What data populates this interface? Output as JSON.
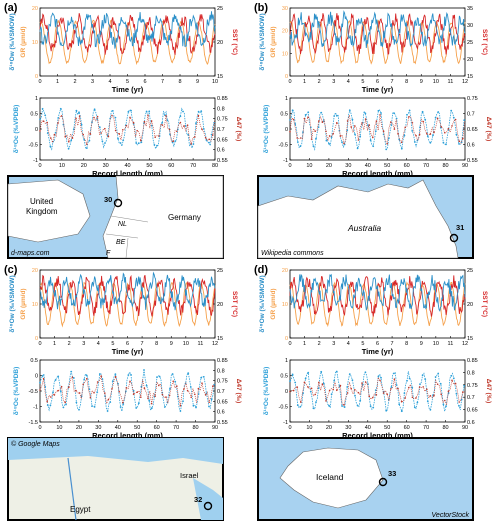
{
  "colors": {
    "gr": "#f5a04a",
    "sst": "#d62728",
    "d18o_water": "#2b8fc8",
    "d18o_calcite": "#2b9fd8",
    "d47": "#c0392b",
    "map_water": "#a8d2f0",
    "map_land": "#ffffff",
    "map_border": "#222222"
  },
  "panels": [
    {
      "label": "(a)",
      "top": {
        "xlabel": "Time (yr)",
        "left_label": "GR (µm/d)",
        "left_ticks": [
          "0",
          "10",
          "20"
        ],
        "right_label": "SST (°C)",
        "right_ticks": [
          "15",
          "20",
          "25"
        ],
        "x_ticks": [
          "0",
          "1",
          "2",
          "3",
          "4",
          "5",
          "6",
          "7",
          "8",
          "9",
          "10"
        ],
        "xlim": [
          0,
          10
        ]
      },
      "bottom": {
        "xlabel": "Record length (mm)",
        "left_ticks": [
          "-1",
          "-0.5",
          "0",
          "0.5",
          "1"
        ],
        "right_ticks": [
          "0.55",
          "0.6",
          "0.65",
          "0.7",
          "0.75",
          "0.8",
          "0.85"
        ],
        "x_ticks": [
          "0",
          "10",
          "20",
          "30",
          "40",
          "50",
          "60",
          "70",
          "80"
        ],
        "xlim": [
          0,
          80
        ]
      },
      "map": {
        "credit": "d-maps.com",
        "site": "30",
        "labels": [
          "United",
          "Kingdom",
          "NL",
          "BE",
          "F",
          "Germany"
        ]
      }
    },
    {
      "label": "(b)",
      "top": {
        "xlabel": "Time (yr)",
        "left_label": "GR (µm/d)",
        "left_ticks": [
          "0",
          "10",
          "20",
          "30"
        ],
        "right_label": "SST (°C)",
        "right_ticks": [
          "15",
          "20",
          "25",
          "30",
          "35"
        ],
        "x_ticks": [
          "0",
          "1",
          "2",
          "3",
          "4",
          "5",
          "6",
          "7",
          "8",
          "9",
          "10",
          "11",
          "12"
        ],
        "xlim": [
          0,
          12
        ]
      },
      "bottom": {
        "xlabel": "Record length (mm)",
        "left_ticks": [
          "-1",
          "-0.5",
          "0",
          "0.5",
          "1"
        ],
        "right_ticks": [
          "0.55",
          "0.6",
          "0.65",
          "0.7",
          "0.75"
        ],
        "x_ticks": [
          "0",
          "10",
          "20",
          "30",
          "40",
          "50",
          "60",
          "70",
          "80",
          "90"
        ],
        "xlim": [
          0,
          90
        ]
      },
      "map": {
        "credit": "Wikipedia commons",
        "site": "31",
        "labels": [
          "Australia"
        ]
      }
    },
    {
      "label": "(c)",
      "top": {
        "xlabel": "Time (yr)",
        "left_label": "GR (µm/d)",
        "left_ticks": [
          "0",
          "10",
          "20"
        ],
        "right_label": "SST (°C)",
        "right_ticks": [
          "15",
          "20",
          "25"
        ],
        "x_ticks": [
          "0",
          "1",
          "2",
          "3",
          "4",
          "5",
          "6",
          "7",
          "8",
          "9",
          "10",
          "11",
          "12"
        ],
        "xlim": [
          0,
          12
        ]
      },
      "bottom": {
        "xlabel": "Record length (mm)",
        "left_ticks": [
          "-1.5",
          "-1",
          "-0.5",
          "0",
          "0.5"
        ],
        "right_ticks": [
          "0.55",
          "0.6",
          "0.65",
          "0.7",
          "0.75",
          "0.8",
          "0.85"
        ],
        "x_ticks": [
          "0",
          "10",
          "20",
          "30",
          "40",
          "50",
          "60",
          "70",
          "80",
          "90"
        ],
        "xlim": [
          0,
          90
        ]
      },
      "map": {
        "credit": "© Google Maps",
        "site": "32",
        "labels": [
          "Israel",
          "Egypt"
        ]
      }
    },
    {
      "label": "(d)",
      "top": {
        "xlabel": "Time (yr)",
        "left_label": "GR (µm/d)",
        "left_ticks": [
          "0",
          "10",
          "20"
        ],
        "right_label": "SST (°C)",
        "right_ticks": [
          "15",
          "20",
          "25"
        ],
        "x_ticks": [
          "0",
          "1",
          "2",
          "3",
          "4",
          "5",
          "6",
          "7",
          "8",
          "9",
          "10",
          "11",
          "12"
        ],
        "xlim": [
          0,
          12
        ]
      },
      "bottom": {
        "xlabel": "Record length (mm)",
        "left_ticks": [
          "-1",
          "-0.5",
          "0",
          "0.5",
          "1"
        ],
        "right_ticks": [
          "0.6",
          "0.65",
          "0.7",
          "0.75",
          "0.8",
          "0.85"
        ],
        "x_ticks": [
          "0",
          "10",
          "20",
          "30",
          "40",
          "50",
          "60",
          "70",
          "80",
          "90"
        ],
        "xlim": [
          0,
          90
        ]
      },
      "map": {
        "credit": "VectorStock",
        "site": "33",
        "labels": [
          "Iceland"
        ]
      }
    }
  ],
  "axis_labels": {
    "top_left_water": "δ¹⁸Ow (‰VSMOW)",
    "bottom_left": "δ¹⁸Oc (‰VPDB)",
    "bottom_right": "Δ47 (‰)"
  }
}
